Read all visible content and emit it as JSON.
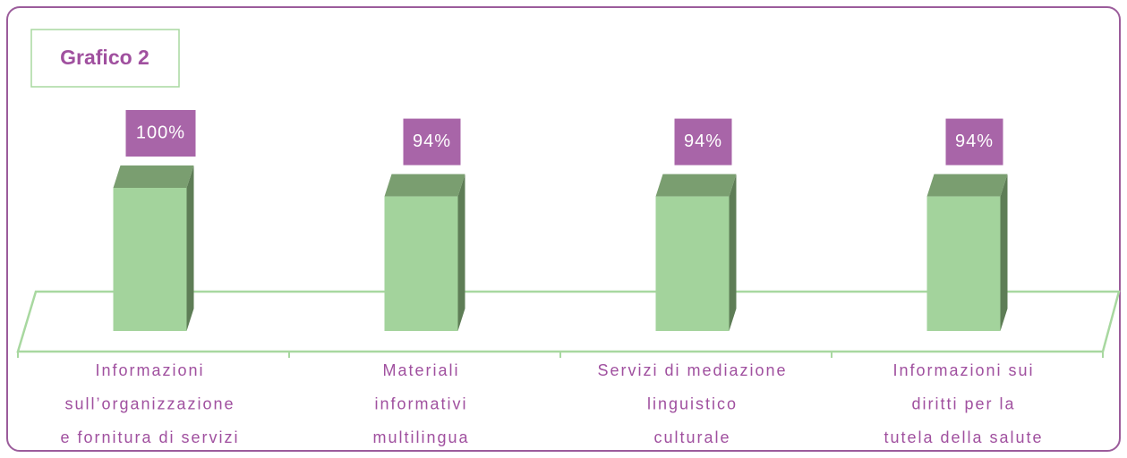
{
  "chart_data": {
    "type": "bar3d",
    "title": "Grafico 2",
    "categories": [
      [
        "Informazioni",
        "sull’organizzazione",
        "e fornitura di servizi"
      ],
      [
        "Materiali",
        "informativi",
        "multilingua"
      ],
      [
        "Servizi di mediazione",
        "linguistico",
        "culturale"
      ],
      [
        "Informazioni sui",
        "diritti per la",
        "tutela della salute"
      ]
    ],
    "values": [
      100,
      94,
      94,
      94
    ],
    "value_labels": [
      "100%",
      "94%",
      "94%",
      "94%"
    ],
    "color": "#a3d39c"
  }
}
